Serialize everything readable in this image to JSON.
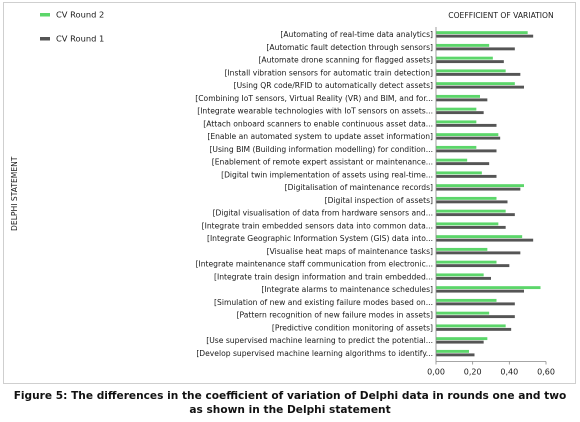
{
  "caption": "Figure 5: The differences in the coefficient of variation of Delphi data in rounds one and two as shown in the Delphi statement",
  "chart_data": {
    "type": "bar",
    "orientation": "horizontal",
    "title": "",
    "xlabel": "COEFFICIENT OF VARIATION",
    "ylabel": "DELPHI STATEMENT",
    "xlim": [
      0,
      0.6
    ],
    "xticks": [
      "0,00",
      "0,20",
      "0,40",
      "0,60"
    ],
    "grid": false,
    "legend_position": "top-left",
    "categories": [
      "[Automating of real-time data analytics]",
      "[Automatic fault detection through sensors]",
      "[Automate drone scanning for flagged assets]",
      "[Install vibration sensors for automatic train detection]",
      "[Using QR code/RFID to automatically detect assets]",
      "[Combining IoT sensors, Virtual Reality (VR) and BIM, and for...",
      "[Integrate wearable technologies with IoT sensors on assets...",
      "[Attach onboard scanners to enable continuous asset data...",
      "[Enable an automated system to update asset information]",
      "[Using BIM (Building information modelling) for condition...",
      "[Enablement of remote expert assistant or maintenance...",
      "[Digital twin implementation of assets using real-time...",
      "[Digitalisation of maintenance records]",
      "[Digital inspection of assets]",
      "[Digital visualisation of data from hardware sensors and...",
      "[Integrate train embedded sensors data into common data...",
      "[Integrate Geographic Information System (GIS) data into...",
      "[Visualise heat maps of maintenance tasks]",
      "[Integrate maintenance staff communication from electronic...",
      "[Integrate train design information and train embedded...",
      "[Integrate alarms to maintenance schedules]",
      "[Simulation of new and existing failure modes based on...",
      "[Pattern recognition of new failure modes in assets]",
      "[Predictive condition monitoring of assets]",
      "[Use supervised machine learning to predict the potential...",
      "[Develop supervised machine learning algorithms  to identify..."
    ],
    "series": [
      {
        "name": "CV Round 2",
        "color": "#5cd66a",
        "values": [
          0.5,
          0.29,
          0.31,
          0.38,
          0.43,
          0.24,
          0.22,
          0.22,
          0.34,
          0.22,
          0.17,
          0.25,
          0.48,
          0.33,
          0.38,
          0.34,
          0.47,
          0.28,
          0.33,
          0.26,
          0.57,
          0.33,
          0.29,
          0.38,
          0.28,
          0.18
        ]
      },
      {
        "name": "CV Round 1",
        "color": "#555555",
        "values": [
          0.53,
          0.43,
          0.37,
          0.46,
          0.48,
          0.28,
          0.26,
          0.33,
          0.35,
          0.33,
          0.29,
          0.33,
          0.46,
          0.39,
          0.43,
          0.38,
          0.53,
          0.46,
          0.4,
          0.3,
          0.48,
          0.43,
          0.43,
          0.41,
          0.26,
          0.21
        ]
      }
    ]
  }
}
